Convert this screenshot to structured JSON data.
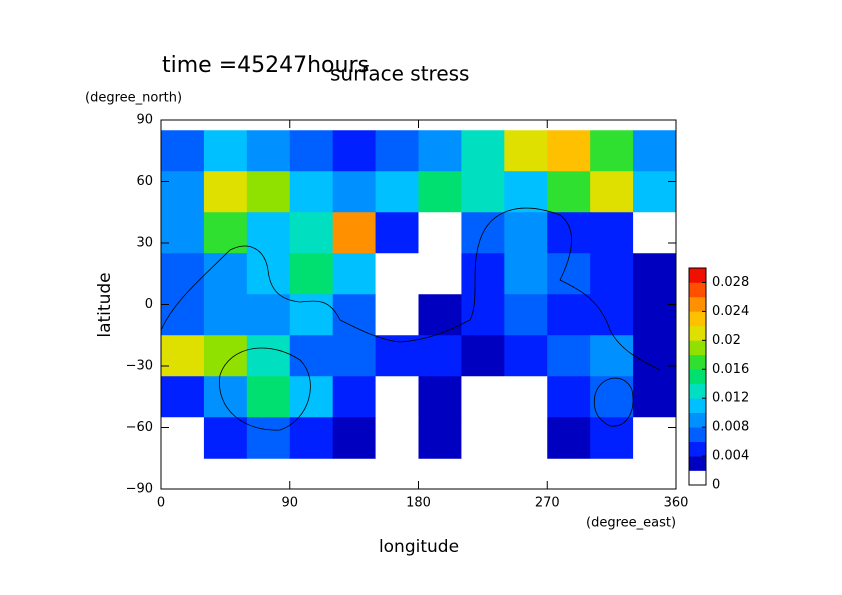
{
  "chart_data": {
    "type": "contour",
    "title": "time =45247hours",
    "subtitle": "surface stress",
    "x_label": "longitude",
    "x_unit": "(degree_east)",
    "y_label": "latitude",
    "y_unit": "(degree_north)",
    "xlim": [
      0,
      360
    ],
    "xticks": [
      0,
      90,
      180,
      270,
      360
    ],
    "ylim": [
      -90,
      90
    ],
    "yticks": [
      {
        "value": -90,
        "label": "−90"
      },
      {
        "value": -60,
        "label": "−60"
      },
      {
        "value": -30,
        "label": "−30"
      },
      0,
      30,
      60,
      90
    ],
    "x": [
      15,
      45,
      75,
      105,
      135,
      165,
      195,
      225,
      255,
      285,
      315,
      345
    ],
    "y": [
      75,
      55,
      35,
      15,
      -5,
      -25,
      -45,
      -65
    ],
    "z": [
      [
        0.006,
        0.01,
        0.008,
        0.006,
        0.004,
        0.006,
        0.008,
        0.012,
        0.02,
        0.022,
        0.016,
        0.008
      ],
      [
        0.008,
        0.02,
        0.018,
        0.01,
        0.008,
        0.01,
        0.014,
        0.012,
        0.01,
        0.016,
        0.02,
        0.01
      ],
      [
        0.008,
        0.016,
        0.01,
        0.012,
        0.024,
        0.004,
        0,
        0.006,
        0.008,
        0.004,
        0.004,
        0
      ],
      [
        0.006,
        0.008,
        0.01,
        0.014,
        0.01,
        0,
        0,
        0.004,
        0.008,
        0.006,
        0.004,
        0.002
      ],
      [
        0.006,
        0.008,
        0.008,
        0.01,
        0.006,
        0,
        0.002,
        0.004,
        0.006,
        0.004,
        0.004,
        0.002
      ],
      [
        0.02,
        0.018,
        0.012,
        0.006,
        0.006,
        0.004,
        0.004,
        0.002,
        0.004,
        0.006,
        0.008,
        0.002
      ],
      [
        0.004,
        0.008,
        0.014,
        0.01,
        0.004,
        0,
        0.002,
        0,
        0,
        0.004,
        0.006,
        0.002
      ],
      [
        0,
        0.004,
        0.006,
        0.004,
        0.002,
        0,
        0.002,
        0,
        0,
        0.002,
        0.004,
        0
      ]
    ],
    "levels": [
      0,
      0.002,
      0.004,
      0.006,
      0.008,
      0.01,
      0.012,
      0.014,
      0.016,
      0.018,
      0.02,
      0.022,
      0.024,
      0.026,
      0.028,
      0.03
    ],
    "colors": [
      "#ffffff",
      "#0000c0",
      "#0020ff",
      "#0060ff",
      "#0090ff",
      "#00c0ff",
      "#00e0c0",
      "#00e070",
      "#30e030",
      "#90e000",
      "#e0e000",
      "#ffc000",
      "#ff9000",
      "#ff5000",
      "#f01000"
    ],
    "colorbar_lim": [
      0,
      0.03
    ],
    "colorbar_ticks": [
      0,
      0.004,
      0.008,
      0.012,
      0.016,
      0.02,
      0.024,
      0.028
    ]
  }
}
